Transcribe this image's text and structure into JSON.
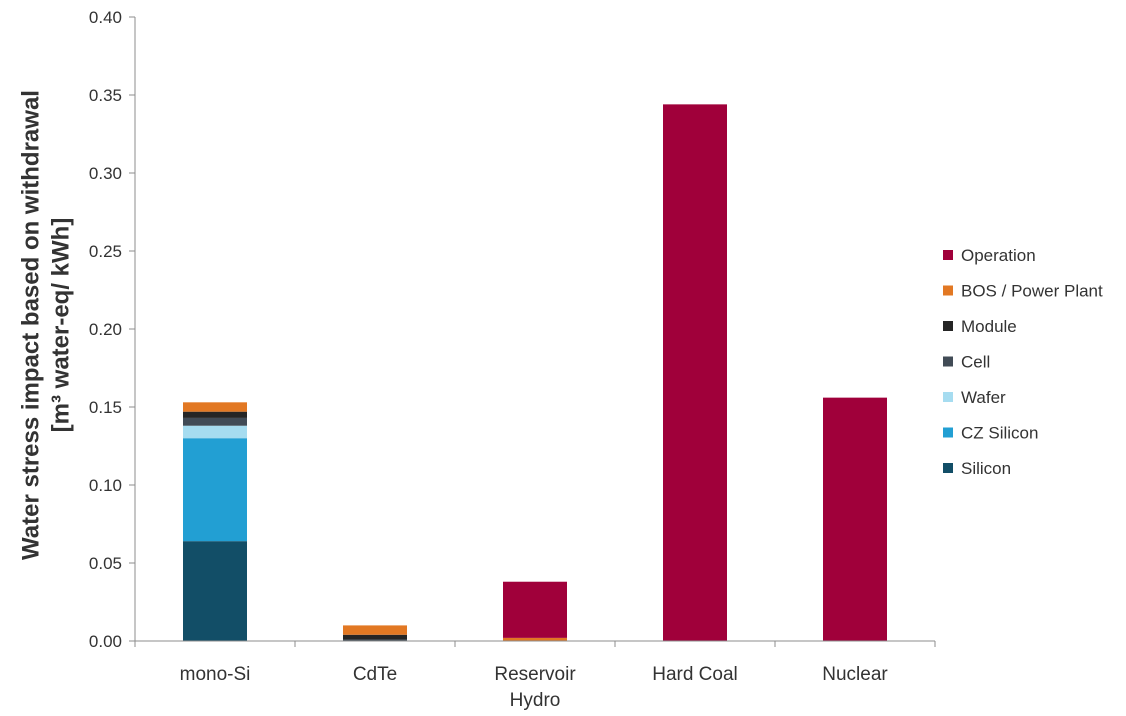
{
  "chart_data": {
    "type": "bar",
    "stacked": true,
    "title": "",
    "xlabel": "",
    "ylabel_lines": [
      "Water stress impact based on withdrawal",
      "[m³ water-eq/ kWh]"
    ],
    "ylim": [
      0,
      0.4
    ],
    "yticks": [
      "0.00",
      "0.05",
      "0.10",
      "0.15",
      "0.20",
      "0.25",
      "0.30",
      "0.35",
      "0.40"
    ],
    "grid": false,
    "legend_position": "right",
    "categories": [
      {
        "lines": [
          "mono-Si"
        ]
      },
      {
        "lines": [
          "CdTe"
        ]
      },
      {
        "lines": [
          "Reservoir",
          "Hydro"
        ]
      },
      {
        "lines": [
          "Hard Coal"
        ]
      },
      {
        "lines": [
          "Nuclear"
        ]
      }
    ],
    "series": [
      {
        "name": "Silicon",
        "color": "#124e67",
        "values": [
          0.064,
          0,
          0,
          0,
          0
        ]
      },
      {
        "name": "CZ Silicon",
        "color": "#229fd3",
        "values": [
          0.066,
          0,
          0,
          0,
          0
        ]
      },
      {
        "name": "Wafer",
        "color": "#a6dcf0",
        "values": [
          0.008,
          0,
          0,
          0,
          0
        ]
      },
      {
        "name": "Cell",
        "color": "#414b56",
        "values": [
          0.005,
          0.001,
          0,
          0,
          0
        ]
      },
      {
        "name": "Module",
        "color": "#252525",
        "values": [
          0.004,
          0.003,
          0,
          0,
          0
        ]
      },
      {
        "name": "BOS / Power Plant",
        "color": "#e27823",
        "values": [
          0.006,
          0.006,
          0.002,
          0,
          0
        ]
      },
      {
        "name": "Operation",
        "color": "#a0003a",
        "values": [
          0,
          0,
          0.036,
          0.344,
          0.156
        ]
      }
    ]
  }
}
